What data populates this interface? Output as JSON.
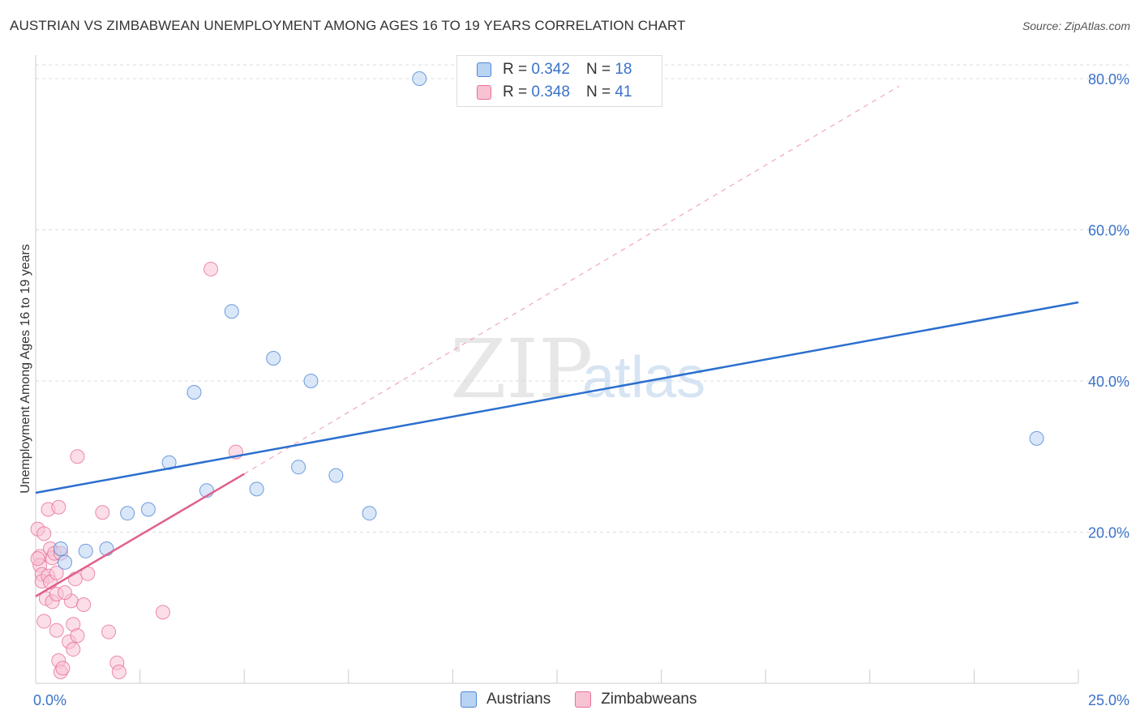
{
  "title": "AUSTRIAN VS ZIMBABWEAN UNEMPLOYMENT AMONG AGES 16 TO 19 YEARS CORRELATION CHART",
  "source": "Source: ZipAtlas.com",
  "watermark": {
    "zip": "ZIP",
    "atlas": "atlas"
  },
  "legend": {
    "austrians": {
      "r_label": "R = ",
      "r_value": "0.342",
      "n_label": "N = ",
      "n_value": "18"
    },
    "zimbabweans": {
      "r_label": "R = ",
      "r_value": "0.348",
      "n_label": "N = ",
      "n_value": "41"
    }
  },
  "bottom_legend": {
    "austrians": "Austrians",
    "zimbabweans": "Zimbabweans"
  },
  "colors": {
    "blue": "#4f86d6",
    "blue_fill": "#b9d3f3",
    "blue_line": "#2b6fce",
    "pink": "#e86f98",
    "pink_fill": "#f7c3d3",
    "pink_line": "#e0608c",
    "axis_text": "#3a72c8",
    "grid": "#dddddd"
  },
  "chart_data": {
    "type": "scatter",
    "title": "AUSTRIAN VS ZIMBABWEAN UNEMPLOYMENT AMONG AGES 16 TO 19 YEARS CORRELATION CHART",
    "xlabel": "",
    "ylabel": "Unemployment Among Ages 16 to 19 years",
    "xlim": [
      0,
      25
    ],
    "ylim": [
      0,
      80
    ],
    "x_tick_labels": [
      "0.0%",
      "25.0%"
    ],
    "y_ticks": [
      20,
      40,
      60,
      80
    ],
    "y_tick_labels": [
      "20.0%",
      "40.0%",
      "60.0%",
      "80.0%"
    ],
    "grid": true,
    "series": [
      {
        "name": "Austrians",
        "points": [
          [
            0.6,
            17.8
          ],
          [
            1.2,
            17.5
          ],
          [
            1.7,
            17.8
          ],
          [
            0.7,
            16.0
          ],
          [
            2.2,
            22.5
          ],
          [
            2.7,
            23.0
          ],
          [
            3.2,
            29.2
          ],
          [
            3.8,
            38.5
          ],
          [
            4.1,
            25.5
          ],
          [
            4.7,
            49.2
          ],
          [
            5.3,
            25.7
          ],
          [
            5.7,
            43.0
          ],
          [
            6.3,
            28.6
          ],
          [
            6.6,
            40.0
          ],
          [
            7.2,
            27.5
          ],
          [
            8.0,
            22.5
          ],
          [
            9.2,
            80.0
          ],
          [
            24.0,
            32.4
          ]
        ],
        "trend": {
          "x": [
            0,
            25
          ],
          "y": [
            25.2,
            50.4
          ]
        }
      },
      {
        "name": "Zimbabweans",
        "points": [
          [
            0.05,
            20.4
          ],
          [
            0.1,
            16.8
          ],
          [
            0.1,
            15.6
          ],
          [
            0.15,
            14.4
          ],
          [
            0.15,
            13.5
          ],
          [
            0.2,
            19.8
          ],
          [
            0.25,
            11.2
          ],
          [
            0.3,
            23.0
          ],
          [
            0.3,
            14.2
          ],
          [
            0.35,
            17.8
          ],
          [
            0.35,
            13.4
          ],
          [
            0.4,
            16.6
          ],
          [
            0.45,
            17.2
          ],
          [
            0.4,
            10.8
          ],
          [
            0.5,
            14.6
          ],
          [
            0.55,
            23.3
          ],
          [
            0.5,
            7.0
          ],
          [
            0.5,
            11.8
          ],
          [
            0.55,
            3.0
          ],
          [
            0.6,
            1.5
          ],
          [
            0.65,
            2.0
          ],
          [
            0.6,
            17.2
          ],
          [
            0.8,
            5.5
          ],
          [
            0.85,
            10.9
          ],
          [
            0.9,
            7.8
          ],
          [
            0.9,
            4.5
          ],
          [
            0.95,
            13.8
          ],
          [
            1.0,
            6.3
          ],
          [
            1.0,
            30.0
          ],
          [
            1.15,
            10.4
          ],
          [
            1.25,
            14.5
          ],
          [
            1.6,
            22.6
          ],
          [
            1.75,
            6.8
          ],
          [
            1.95,
            2.7
          ],
          [
            2.0,
            1.5
          ],
          [
            3.05,
            9.4
          ],
          [
            4.2,
            54.8
          ],
          [
            4.8,
            30.6
          ],
          [
            0.05,
            16.5
          ],
          [
            0.2,
            8.2
          ],
          [
            0.7,
            12.0
          ]
        ],
        "trend": {
          "x": [
            0,
            5.0
          ],
          "y": [
            11.5,
            27.7
          ]
        },
        "trend_extension": {
          "x": [
            5.0,
            20.7
          ],
          "y": [
            27.7,
            79.0
          ]
        }
      }
    ]
  }
}
